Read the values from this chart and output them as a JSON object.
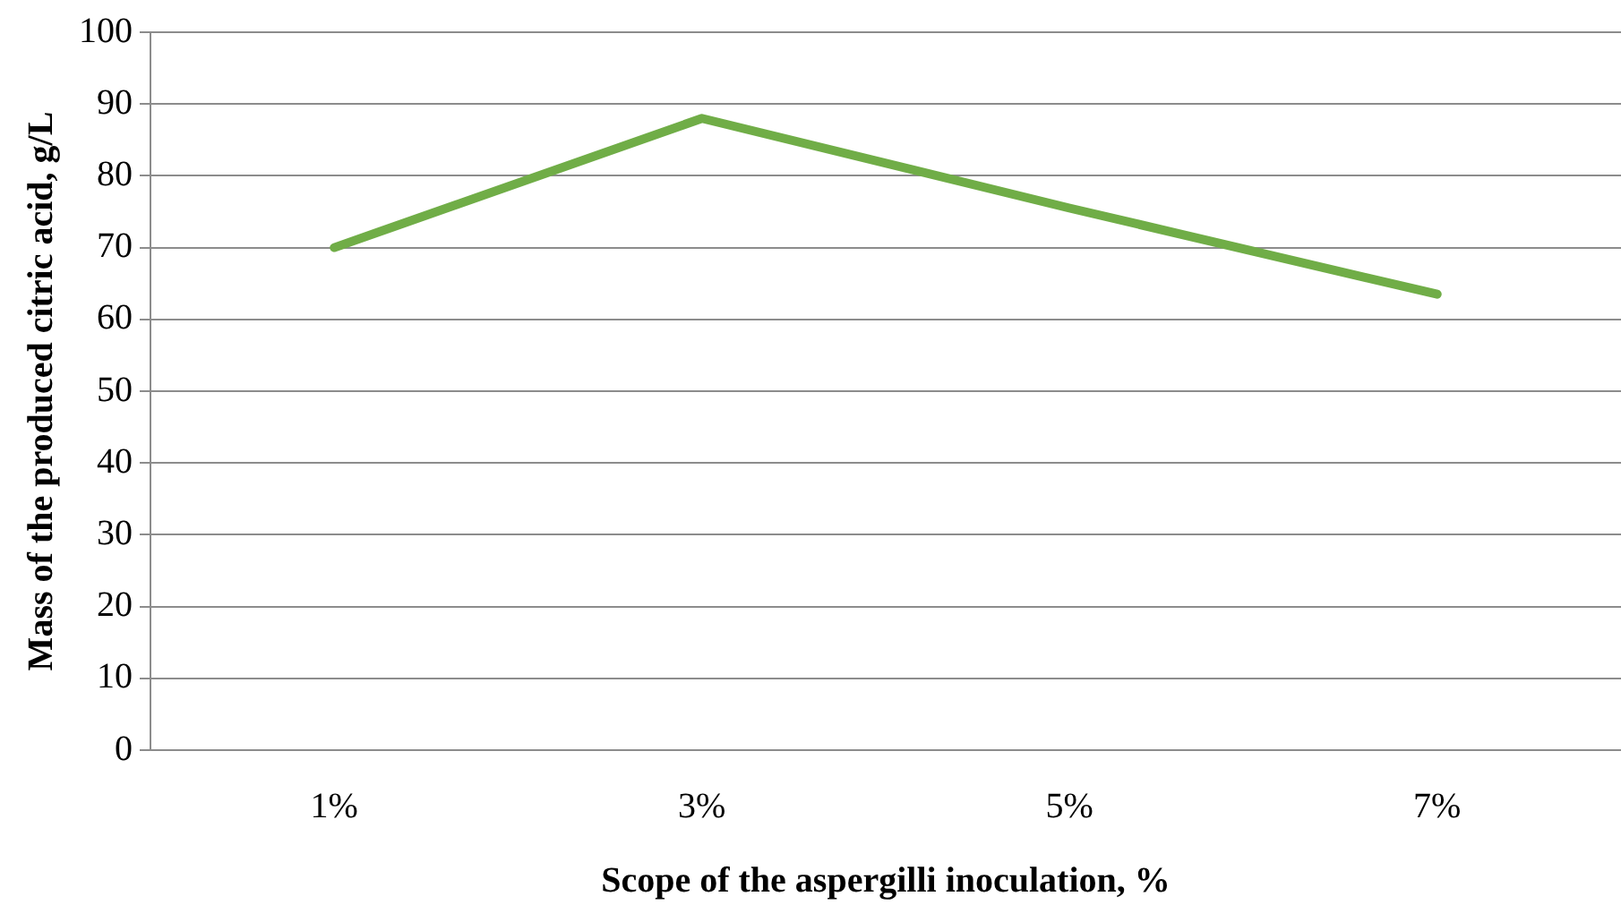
{
  "chart_data": {
    "type": "line",
    "xlabel": "Scope of the aspergilli inoculation, %",
    "ylabel": "Mass of the produced citric acid, g/L",
    "categories": [
      "1%",
      "3%",
      "5%",
      "7%"
    ],
    "series": [
      {
        "color": "#70ad47",
        "values": [
          70,
          88,
          75.5,
          63.5
        ]
      }
    ],
    "ylim": [
      0,
      100
    ],
    "yticks": [
      0,
      10,
      20,
      30,
      40,
      50,
      60,
      70,
      80,
      90,
      100
    ],
    "grid": "y",
    "legend": false,
    "marker": "none",
    "line_style": "solid"
  }
}
